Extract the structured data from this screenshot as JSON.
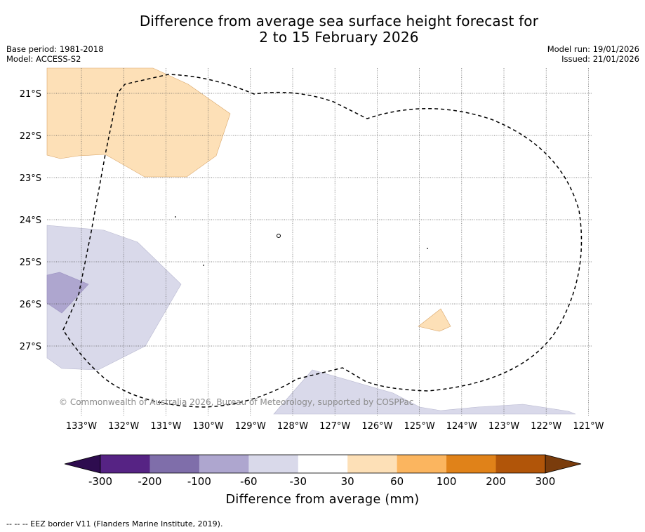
{
  "header": {
    "title_line1": "Difference from average sea surface height forecast for",
    "title_line2": "2 to 15 February 2026"
  },
  "meta": {
    "base_period": "Base period: 1981-2018",
    "model": "Model: ACCESS-S2",
    "model_run": "Model run: 19/01/2026",
    "issued": "Issued: 21/01/2026"
  },
  "map": {
    "lat_labels": [
      "21°S",
      "22°S",
      "23°S",
      "24°S",
      "25°S",
      "26°S",
      "27°S"
    ],
    "lon_labels": [
      "133°W",
      "132°W",
      "131°W",
      "130°W",
      "129°W",
      "128°W",
      "127°W",
      "126°W",
      "125°W",
      "124°W",
      "123°W",
      "122°W",
      "121°W"
    ],
    "copyright": "© Commonwealth of Australia 2026, Bureau of Meteorology, supported by COSPPac"
  },
  "colorbar": {
    "title": "Difference from average (mm)",
    "ticks": [
      "-300",
      "-200",
      "-100",
      "-60",
      "-30",
      "30",
      "60",
      "100",
      "200",
      "300"
    ],
    "colors": {
      "extend_min": "#2e0c4f",
      "bins": [
        "#562384",
        "#7f6eaa",
        "#aea6cf",
        "#d9d9ea",
        "#ffffff",
        "#fde0b7",
        "#fbb55f",
        "#e08219",
        "#b15509"
      ],
      "extend_max": "#7a3c0c"
    }
  },
  "legend": {
    "eez_note": "--  --  -- EEZ border V11 (Flanders Marine Institute, 2019)."
  }
}
